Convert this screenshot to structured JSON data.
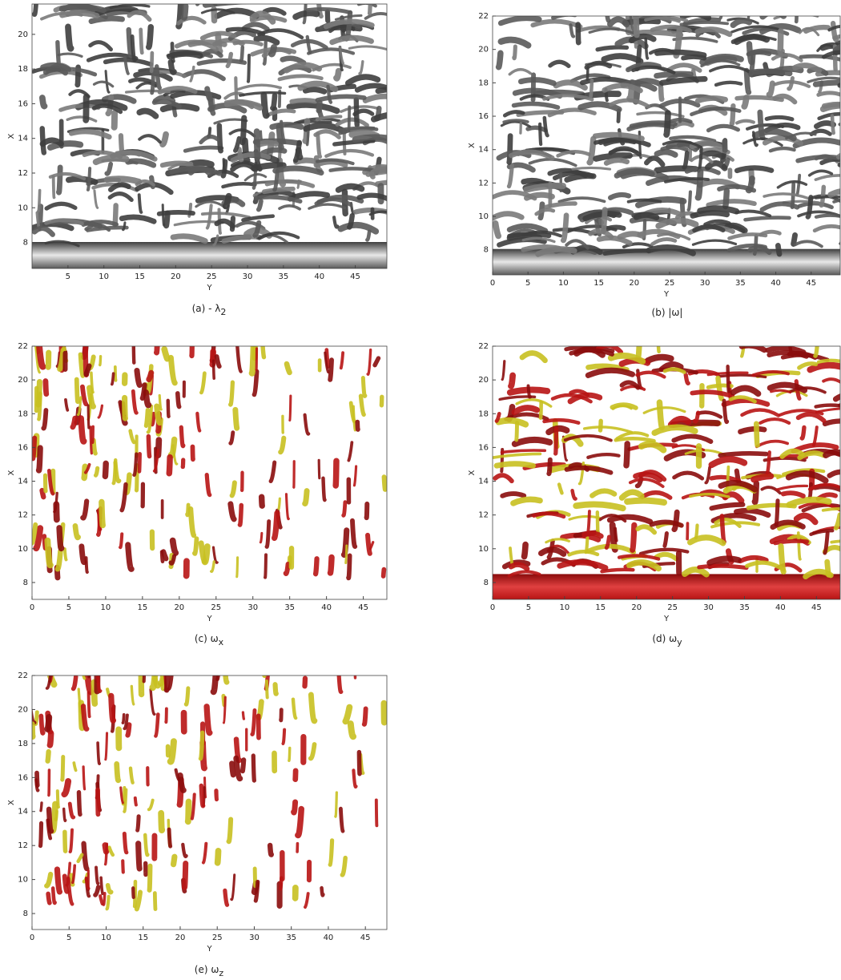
{
  "panels": [
    {
      "caption": {
        "text": "(a) - λ",
        "subscript": "2"
      },
      "xlabel": "Y",
      "ylabel": "X",
      "xlim": [
        0,
        49.4
      ],
      "ylim": [
        6.5,
        21.75
      ],
      "xticks": [
        5,
        10,
        15,
        20,
        25,
        30,
        35,
        40,
        45
      ],
      "yticks": [
        8,
        10,
        12,
        14,
        16,
        18,
        20
      ],
      "colors": [
        "#5a5a5a",
        "#7a7a7a",
        "#3e3e3e"
      ]
    },
    {
      "caption": {
        "text": "(b) |ω|"
      },
      "xlabel": "Y",
      "ylabel": "X",
      "xlim": [
        0,
        49.1
      ],
      "ylim": [
        6.5,
        22
      ],
      "xticks": [
        0,
        5,
        10,
        15,
        20,
        25,
        30,
        35,
        40,
        45
      ],
      "yticks": [
        8,
        10,
        12,
        14,
        16,
        18,
        20,
        22
      ],
      "colors": [
        "#5a5a5a",
        "#7a7a7a",
        "#3e3e3e"
      ]
    },
    {
      "caption": {
        "text": "(c) ω",
        "subscript": "x"
      },
      "xlabel": "Y",
      "ylabel": "X",
      "xlim": [
        0,
        48.2
      ],
      "ylim": [
        7,
        22
      ],
      "xticks": [
        0,
        5,
        10,
        15,
        20,
        25,
        30,
        35,
        40,
        45
      ],
      "yticks": [
        8,
        10,
        12,
        14,
        16,
        18,
        20,
        22
      ],
      "colors": [
        "#b81414",
        "#c8c020",
        "#8a0c0c"
      ]
    },
    {
      "caption": {
        "text": "(d) ω",
        "subscript": "y"
      },
      "xlabel": "Y",
      "ylabel": "X",
      "xlim": [
        0,
        48.3
      ],
      "ylim": [
        7,
        22
      ],
      "xticks": [
        0,
        5,
        10,
        15,
        20,
        25,
        30,
        35,
        40,
        45
      ],
      "yticks": [
        8,
        10,
        12,
        14,
        16,
        18,
        20,
        22
      ],
      "colors": [
        "#b81414",
        "#c8c020",
        "#8a0c0c"
      ]
    },
    {
      "caption": {
        "text": "(e) ω",
        "subscript": "z"
      },
      "xlabel": "Y",
      "ylabel": "X",
      "xlim": [
        0,
        47.9
      ],
      "ylim": [
        7.06,
        22
      ],
      "xticks": [
        0,
        5,
        10,
        15,
        20,
        25,
        30,
        35,
        40,
        45
      ],
      "yticks": [
        8,
        10,
        12,
        14,
        16,
        18,
        20,
        22
      ],
      "colors": [
        "#b81414",
        "#c8c020",
        "#8a0c0c"
      ]
    }
  ]
}
